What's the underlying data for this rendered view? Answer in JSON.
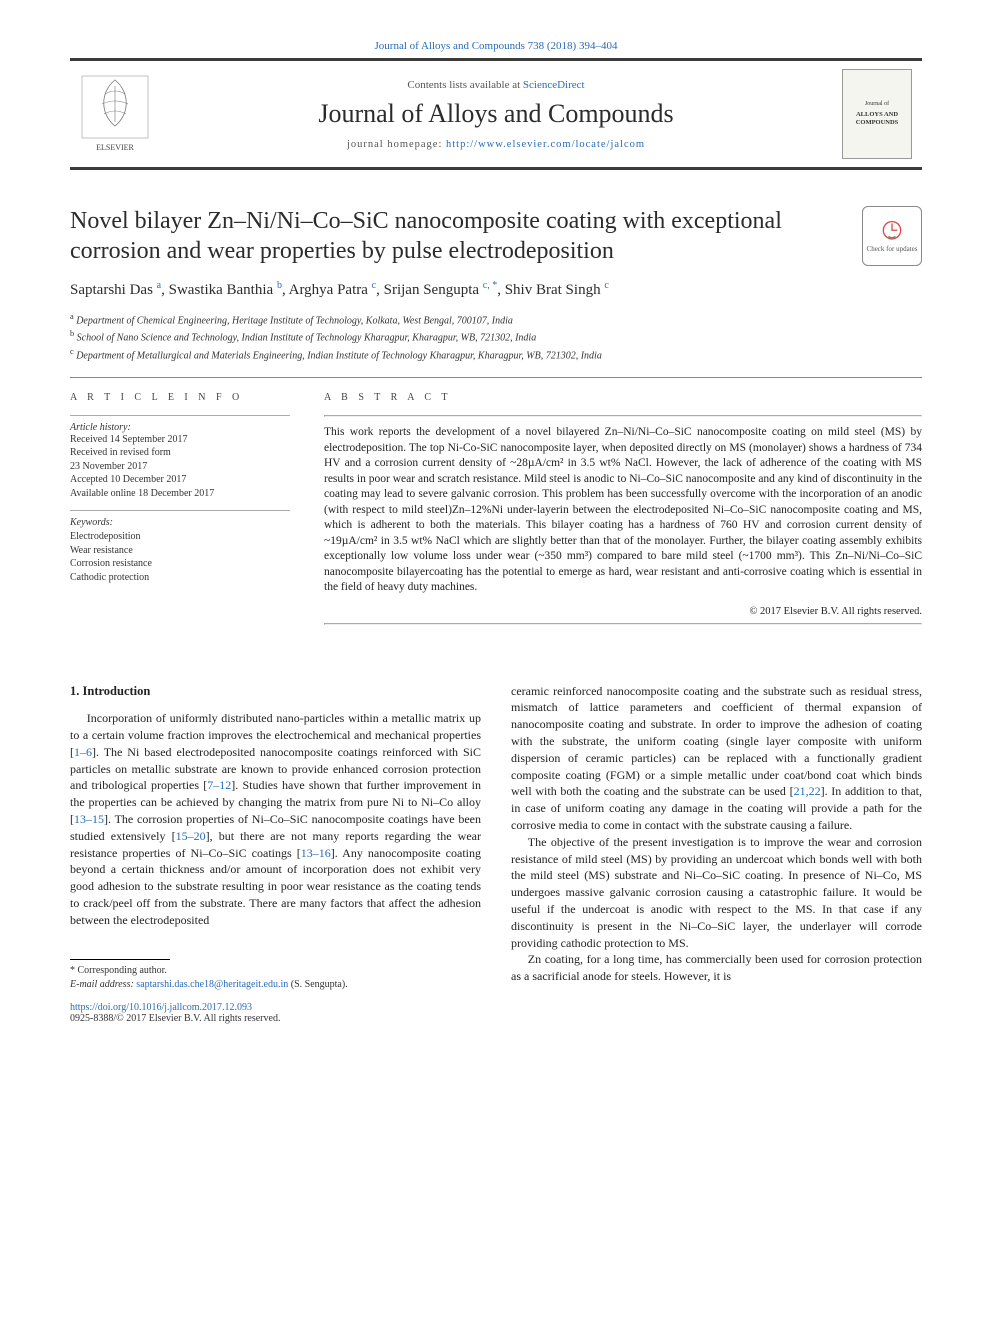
{
  "top_link": "Journal of Alloys and Compounds 738 (2018) 394–404",
  "header": {
    "contents_prefix": "Contents lists available at ",
    "contents_link": "ScienceDirect",
    "journal_name": "Journal of Alloys and Compounds",
    "homepage_prefix": "journal homepage: ",
    "homepage_url": "http://www.elsevier.com/locate/jalcom",
    "elsevier_label": "ELSEVIER",
    "cover_small": "Journal of",
    "cover_title": "ALLOYS AND COMPOUNDS"
  },
  "title": "Novel bilayer Zn–Ni/Ni–Co–SiC nanocomposite coating with exceptional corrosion and wear properties by pulse electrodeposition",
  "check_updates": "Check for updates",
  "authors_html": "Saptarshi Das <sup>a</sup>, Swastika Banthia <sup>b</sup>, Arghya Patra <sup>c</sup>, Srijan Sengupta <sup>c, *</sup>, Shiv Brat Singh <sup>c</sup>",
  "affiliations": [
    {
      "sup": "a",
      "text": "Department of Chemical Engineering, Heritage Institute of Technology, Kolkata, West Bengal, 700107, India"
    },
    {
      "sup": "b",
      "text": "School of Nano Science and Technology, Indian Institute of Technology Kharagpur, Kharagpur, WB, 721302, India"
    },
    {
      "sup": "c",
      "text": "Department of Metallurgical and Materials Engineering, Indian Institute of Technology Kharagpur, Kharagpur, WB, 721302, India"
    }
  ],
  "info": {
    "heading": "A R T I C L E   I N F O",
    "history_label": "Article history:",
    "history": [
      "Received 14 September 2017",
      "Received in revised form",
      "23 November 2017",
      "Accepted 10 December 2017",
      "Available online 18 December 2017"
    ],
    "keywords_label": "Keywords:",
    "keywords": [
      "Electrodeposition",
      "Wear resistance",
      "Corrosion resistance",
      "Cathodic protection"
    ]
  },
  "abstract": {
    "heading": "A B S T R A C T",
    "text": "This work reports the development of a novel bilayered Zn–Ni/Ni–Co–SiC nanocomposite coating on mild steel (MS) by electrodeposition. The top Ni-Co-SiC nanocomposite layer, when deposited directly on MS (monolayer) shows a hardness of 734 HV and a corrosion current density of ~28µA/cm² in 3.5 wt% NaCl. However, the lack of adherence of the coating with MS results in poor wear and scratch resistance. Mild steel is anodic to Ni–Co–SiC nanocomposite and any kind of discontinuity in the coating may lead to severe galvanic corrosion. This problem has been successfully overcome with the incorporation of an anodic (with respect to mild steel)Zn–12%Ni under-layerin between the electrodeposited Ni–Co–SiC nanocomposite coating and MS, which is adherent to both the materials. This bilayer coating has a hardness of 760 HV and corrosion current density of ~19µA/cm² in 3.5 wt% NaCl which are slightly better than that of the monolayer. Further, the bilayer coating assembly exhibits exceptionally low volume loss under wear (~350 mm³) compared to bare mild steel (~1700 mm³). This Zn–Ni/Ni–Co–SiC nanocomposite bilayercoating has the potential to emerge as hard, wear resistant and anti-corrosive coating which is essential in the field of heavy duty machines.",
    "copyright": "© 2017 Elsevier B.V. All rights reserved."
  },
  "body": {
    "section_heading": "1.  Introduction",
    "left_paragraphs": [
      "Incorporation of uniformly distributed nano-particles within a metallic matrix up to a certain volume fraction improves the electrochemical and mechanical properties [<span class='ref'>1–6</span>]. The Ni based electrodeposited nanocomposite coatings reinforced with SiC particles on metallic substrate are known to provide enhanced corrosion protection and tribological properties [<span class='ref'>7–12</span>]. Studies have shown that further improvement in the properties can be achieved by changing the matrix from pure Ni to Ni–Co alloy [<span class='ref'>13–15</span>]. The corrosion properties of Ni–Co–SiC nanocomposite coatings have been studied extensively [<span class='ref'>15–20</span>], but there are not many reports regarding the wear resistance properties of Ni–Co–SiC coatings [<span class='ref'>13–16</span>]. Any nanocomposite coating beyond a certain thickness and/or amount of incorporation does not exhibit very good adhesion to the substrate resulting in poor wear resistance as the coating tends to crack/peel off from the substrate. There are many factors that affect the adhesion between the electrodeposited"
    ],
    "right_paragraphs": [
      "ceramic reinforced nanocomposite coating and the substrate such as residual stress, mismatch of lattice parameters and coefficient of thermal expansion of nanocomposite coating and substrate. In order to improve the adhesion of coating with the substrate, the uniform coating (single layer composite with uniform dispersion of ceramic particles) can be replaced with a functionally gradient composite coating (FGM) or a simple metallic under coat/bond coat which binds well with both the coating and the substrate can be used [<span class='ref'>21,22</span>]. In addition to that, in case of uniform coating any damage in the coating will provide a path for the corrosive media to come in contact with the substrate causing a failure.",
      "The objective of the present investigation is to improve the wear and corrosion resistance of mild steel (MS) by providing an undercoat which bonds well with both the mild steel (MS) substrate and Ni–Co–SiC coating. In presence of Ni–Co, MS undergoes massive galvanic corrosion causing a catastrophic failure. It would be useful if the undercoat is anodic with respect to the MS. In that case if any discontinuity is present in the Ni–Co–SiC layer, the underlayer will corrode providing cathodic protection to MS.",
      "Zn coating, for a long time, has commercially been used for corrosion protection as a sacrificial anode for steels. However, it is"
    ]
  },
  "footnotes": {
    "corresponding": "* Corresponding author.",
    "email_label": "E-mail address: ",
    "email": "saptarshi.das.che18@heritageit.edu.in",
    "email_person": " (S. Sengupta)."
  },
  "doi": {
    "url": "https://doi.org/10.1016/j.jallcom.2017.12.093",
    "line": "0925-8388/© 2017 Elsevier B.V. All rights reserved."
  },
  "colors": {
    "link": "#2a6bb8",
    "rule": "#888888",
    "text": "#222222"
  }
}
